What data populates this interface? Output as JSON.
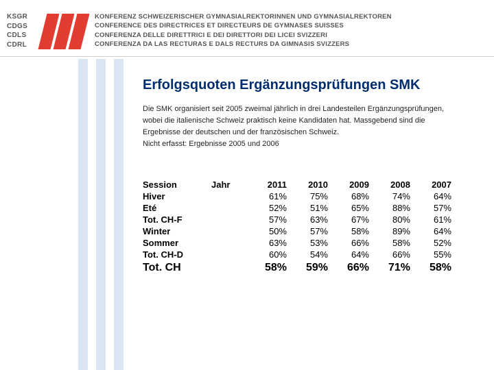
{
  "header": {
    "abbrevs": [
      "KSGR",
      "CDGS",
      "CDLS",
      "CDRL"
    ],
    "org_names": [
      "KONFERENZ SCHWEIZERISCHER GYMNASIALREKTORINNEN UND GYMNASIALREKTOREN",
      "CONFERENCE DES DIRECTRICES ET DIRECTEURS DE GYMNASES SUISSES",
      "CONFERENZA DELLE DIRETTRICI E DEI DIRETTORI DEI LICEI SVIZZERI",
      "CONFERENZA DA LAS RECTURAS E DALS RECTURS DA GIMNASIS SVIZZERS"
    ],
    "logo_color": "#e03c31",
    "bg_bar_color": "#d9e6f2"
  },
  "title": "Erfolgsquoten Ergänzungsprüfungen SMK",
  "intro": {
    "line1": "Die SMK organisiert seit 2005 zweimal jährlich in drei Landesteilen Ergänzungsprüfungen,",
    "line2": "wobei die italienische Schweiz praktisch keine Kandidaten hat. Massgebend sind die",
    "line3": "Ergebnisse der deutschen und der französischen Schweiz.",
    "line4": "Nicht erfasst: Ergebnisse 2005 und 2006"
  },
  "table": {
    "session_label": "Session",
    "jahr_label": "Jahr",
    "years": [
      "2011",
      "2010",
      "2009",
      "2008",
      "2007"
    ],
    "rows": [
      {
        "label": "Hiver",
        "v": [
          "61%",
          "75%",
          "68%",
          "74%",
          "64%"
        ]
      },
      {
        "label": "Eté",
        "v": [
          "52%",
          "51%",
          "65%",
          "88%",
          "57%"
        ]
      },
      {
        "label": "Tot. CH-F",
        "v": [
          "57%",
          "63%",
          "67%",
          "80%",
          "61%"
        ]
      },
      {
        "label": "Winter",
        "v": [
          "50%",
          "57%",
          "58%",
          "89%",
          "64%"
        ]
      },
      {
        "label": "Sommer",
        "v": [
          "63%",
          "53%",
          "66%",
          "58%",
          "52%"
        ]
      },
      {
        "label": "Tot. CH-D",
        "v": [
          "60%",
          "54%",
          "64%",
          "66%",
          "55%"
        ]
      }
    ],
    "total": {
      "label": "Tot. CH",
      "v": [
        "58%",
        "59%",
        "66%",
        "71%",
        "58%"
      ]
    }
  }
}
